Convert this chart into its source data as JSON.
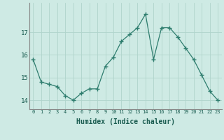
{
  "x": [
    0,
    1,
    2,
    3,
    4,
    5,
    6,
    7,
    8,
    9,
    10,
    11,
    12,
    13,
    14,
    15,
    16,
    17,
    18,
    19,
    20,
    21,
    22,
    23
  ],
  "y": [
    15.8,
    14.8,
    14.7,
    14.6,
    14.2,
    14.0,
    14.3,
    14.5,
    14.5,
    15.5,
    15.9,
    16.6,
    16.9,
    17.2,
    17.8,
    15.8,
    17.2,
    17.2,
    16.8,
    16.3,
    15.8,
    15.1,
    14.4,
    14.0
  ],
  "line_color": "#2e7d6e",
  "marker": "+",
  "marker_size": 4,
  "bg_color": "#ceeae4",
  "grid_color": "#b0d4cc",
  "xlabel": "Humidex (Indice chaleur)",
  "yticks": [
    14,
    15,
    16,
    17
  ],
  "xtick_labels": [
    "0",
    "1",
    "2",
    "3",
    "4",
    "5",
    "6",
    "7",
    "8",
    "9",
    "10",
    "11",
    "12",
    "13",
    "14",
    "15",
    "16",
    "17",
    "18",
    "19",
    "20",
    "21",
    "22",
    "23"
  ],
  "ylim": [
    13.6,
    18.3
  ],
  "xlim": [
    -0.5,
    23.5
  ]
}
